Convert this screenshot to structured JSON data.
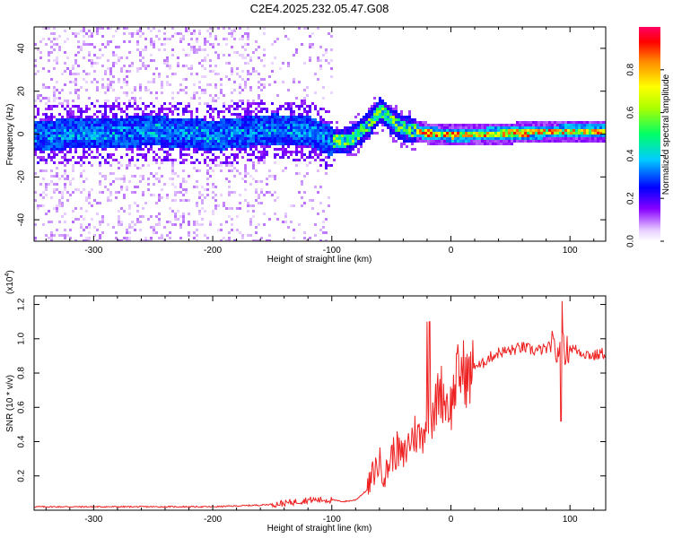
{
  "title": "C2E4.2025.232.05.47.G08",
  "colors": {
    "snr_line": "#ee2222",
    "frame": "#000000",
    "background": "#ffffff"
  },
  "chart_data": [
    {
      "type": "heatmap",
      "title": "C2E4.2025.232.05.47.G08",
      "xlabel": "Height of straight line (km)",
      "ylabel": "Frequency (Hz)",
      "xlim": [
        -350,
        130
      ],
      "ylim": [
        -50,
        50
      ],
      "xticks": [
        -300,
        -200,
        -100,
        0,
        100
      ],
      "yticks": [
        -40,
        -20,
        0,
        20,
        40
      ],
      "colorbar": {
        "label": "Normalized spectral amplitude",
        "range": [
          0.0,
          1.0
        ],
        "ticks": [
          0.0,
          0.2,
          0.4,
          0.6,
          0.8
        ],
        "tick_labels": [
          "0.0",
          "0.2",
          "0.4",
          "0.6",
          "0.8"
        ]
      },
      "band_center_hz": [
        [
          -350,
          0
        ],
        [
          -300,
          1
        ],
        [
          -250,
          2
        ],
        [
          -200,
          0
        ],
        [
          -150,
          3
        ],
        [
          -120,
          2
        ],
        [
          -100,
          -3
        ],
        [
          -85,
          -2
        ],
        [
          -70,
          5
        ],
        [
          -60,
          12
        ],
        [
          -50,
          6
        ],
        [
          -40,
          3
        ],
        [
          -30,
          2
        ],
        [
          -20,
          1
        ],
        [
          0,
          0
        ],
        [
          50,
          1
        ],
        [
          100,
          2
        ],
        [
          130,
          2
        ]
      ]
    },
    {
      "type": "line",
      "xlabel": "Height of straight line (km)",
      "ylabel": "SNR (10 * v/v)",
      "y_scale_label": "(x10^4)",
      "y_scale_text": {
        "base": "(x10",
        "exp": "4",
        "close": ")"
      },
      "xlim": [
        -350,
        130
      ],
      "ylim": [
        0,
        1.25
      ],
      "xticks": [
        -300,
        -200,
        -100,
        0,
        100
      ],
      "yticks": [
        0.2,
        0.4,
        0.6,
        0.8,
        1.0,
        1.2
      ],
      "ytick_labels": [
        "0.2",
        "0.4",
        "0.6",
        "0.8",
        "1.0",
        "1.2"
      ],
      "series": [
        {
          "name": "SNR",
          "x": [
            -350,
            -300,
            -250,
            -200,
            -180,
            -160,
            -140,
            -120,
            -100,
            -90,
            -80,
            -70,
            -65,
            -60,
            -55,
            -50,
            -45,
            -40,
            -35,
            -30,
            -25,
            -20,
            -18,
            -15,
            -10,
            -5,
            0,
            5,
            10,
            15,
            20,
            25,
            30,
            40,
            50,
            60,
            70,
            80,
            85,
            90,
            92,
            95,
            100,
            110,
            120,
            130
          ],
          "y": [
            0.02,
            0.02,
            0.02,
            0.02,
            0.025,
            0.03,
            0.04,
            0.06,
            0.06,
            0.05,
            0.06,
            0.12,
            0.22,
            0.28,
            0.2,
            0.32,
            0.35,
            0.3,
            0.4,
            0.45,
            0.42,
            0.55,
            0.62,
            0.5,
            0.72,
            0.65,
            0.6,
            0.78,
            0.82,
            0.76,
            0.85,
            0.84,
            0.88,
            0.92,
            0.93,
            0.95,
            0.93,
            0.94,
            0.96,
            0.9,
            1.05,
            0.92,
            0.95,
            0.92,
            0.9,
            0.92
          ]
        }
      ]
    }
  ]
}
